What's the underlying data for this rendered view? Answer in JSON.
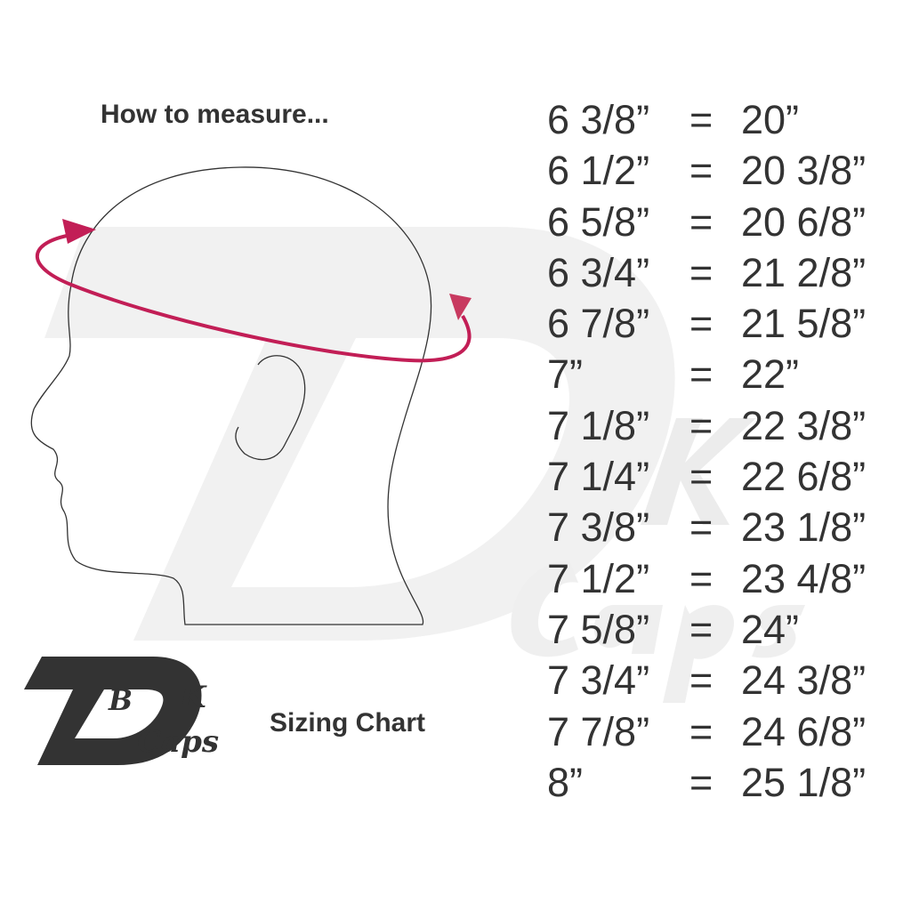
{
  "headings": {
    "how_to_measure": "How to measure...",
    "sizing_chart": "Sizing Chart"
  },
  "logo": {
    "letters": "DBK",
    "text": "Caps"
  },
  "colors": {
    "arrow": "#c21e56",
    "text": "#333333",
    "watermark": "#f0f0f0"
  },
  "sizes": [
    {
      "hat": "6 3/8”",
      "eq": "=",
      "head": "20”"
    },
    {
      "hat": "6 1/2”",
      "eq": "=",
      "head": "20 3/8”"
    },
    {
      "hat": "6 5/8”",
      "eq": "=",
      "head": "20 6/8”"
    },
    {
      "hat": "6 3/4”",
      "eq": "=",
      "head": "21 2/8”"
    },
    {
      "hat": "6 7/8”",
      "eq": "=",
      "head": "21 5/8”"
    },
    {
      "hat": "7”",
      "eq": "=",
      "head": "22”"
    },
    {
      "hat": "7 1/8”",
      "eq": "=",
      "head": "22 3/8”"
    },
    {
      "hat": "7 1/4”",
      "eq": "=",
      "head": "22 6/8”"
    },
    {
      "hat": "7 3/8”",
      "eq": "=",
      "head": "23 1/8”"
    },
    {
      "hat": "7 1/2”",
      "eq": "=",
      "head": "23 4/8”"
    },
    {
      "hat": "7 5/8”",
      "eq": "=",
      "head": "24”"
    },
    {
      "hat": "7 3/4”",
      "eq": "=",
      "head": "24 3/8”"
    },
    {
      "hat": "7 7/8”",
      "eq": "=",
      "head": "24 6/8”"
    },
    {
      "hat": "8”",
      "eq": "=",
      "head": "25 1/8”"
    }
  ]
}
